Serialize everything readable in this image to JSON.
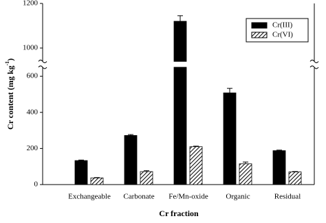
{
  "chart_data": {
    "type": "bar",
    "categories": [
      "Exchangeable",
      "Carbonate",
      "Fe/Mn-oxide",
      "Organic",
      "Residual"
    ],
    "series": [
      {
        "name": "Cr(III)",
        "color": "#000000",
        "fill": "solid",
        "values": [
          133,
          272,
          1120,
          508,
          188
        ],
        "errors": [
          3,
          5,
          25,
          25,
          3
        ]
      },
      {
        "name": "Cr(VI)",
        "color": "#000000",
        "fill": "hatch",
        "values": [
          37,
          72,
          210,
          115,
          70
        ],
        "errors": [
          2,
          5,
          3,
          10,
          2
        ]
      }
    ],
    "ylim": [
      0,
      1200
    ],
    "y_break": [
      650,
      940
    ],
    "yticks": [
      0,
      200,
      400,
      600,
      1000,
      1200
    ],
    "ylabel": {
      "text": "Cr content (mg kg",
      "superscript": "-1",
      "suffix": ")"
    },
    "xlabel": "Cr fraction",
    "legend": "upper right",
    "grid": false
  }
}
